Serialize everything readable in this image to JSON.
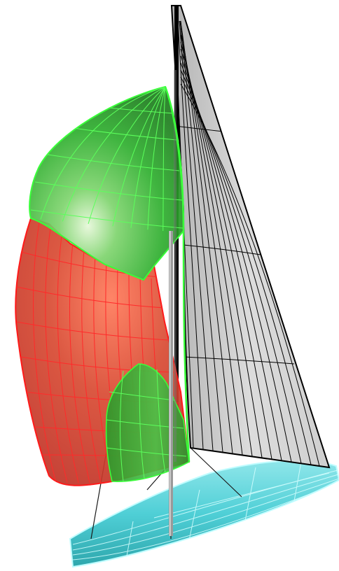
{
  "scene": {
    "subject": "sailboat-sail-wireframe-render",
    "background_color": "#ffffff",
    "colors": {
      "spinnaker_head": "#22d322",
      "spinnaker_head_grid": "#39ff39",
      "spinnaker_body": "#d83a2a",
      "spinnaker_body_grid": "#ff1a1a",
      "staysail": "#2fae2f",
      "mainsail": "#c8c8c8",
      "mainsail_grid": "#000000",
      "hull": "#38c9cf",
      "hull_grid": "#bffcff",
      "mast": "#9a9a9a"
    }
  }
}
